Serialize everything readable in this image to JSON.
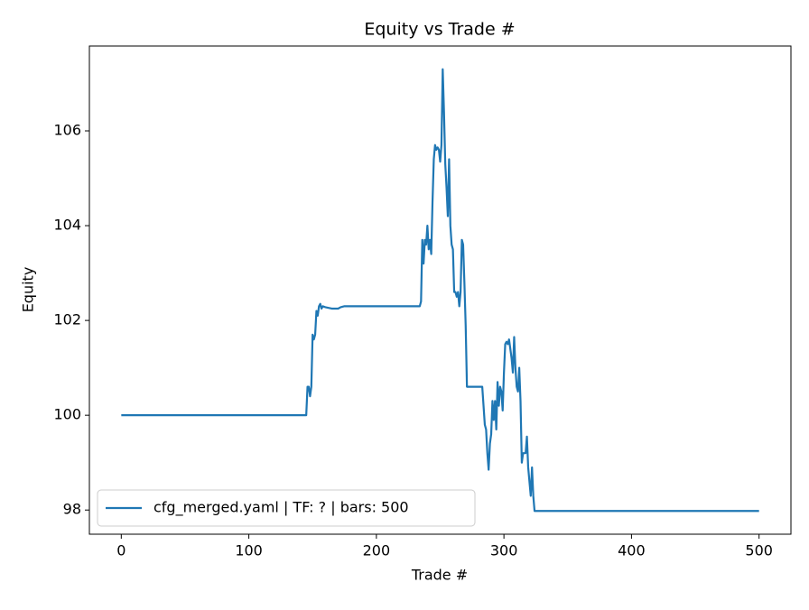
{
  "chart_data": {
    "type": "line",
    "title": "Equity vs Trade #",
    "x_label": "Trade #",
    "y_label": "Equity",
    "x": [
      0,
      145,
      146,
      147,
      148,
      149,
      150,
      151,
      152,
      153,
      154,
      155,
      156,
      157,
      158,
      160,
      165,
      170,
      172,
      175,
      234,
      235,
      236,
      237,
      238,
      239,
      240,
      241,
      242,
      243,
      244,
      245,
      246,
      247,
      248,
      249,
      250,
      251,
      252,
      253,
      254,
      255,
      256,
      257,
      258,
      259,
      260,
      261,
      262,
      263,
      264,
      265,
      266,
      267,
      268,
      269,
      270,
      271,
      272,
      283,
      285,
      286,
      287,
      288,
      289,
      290,
      291,
      292,
      293,
      294,
      295,
      296,
      297,
      298,
      299,
      300,
      301,
      302,
      303,
      304,
      305,
      306,
      307,
      308,
      309,
      310,
      311,
      312,
      313,
      314,
      315,
      316,
      317,
      318,
      319,
      320,
      321,
      322,
      323,
      324,
      500
    ],
    "series": [
      {
        "name": "cfg_merged.yaml | TF: ? | bars: 500",
        "color": "#1f77b4",
        "values": [
          100,
          100,
          100.6,
          100.6,
          100.4,
          100.6,
          101.7,
          101.6,
          101.7,
          102.2,
          102.1,
          102.3,
          102.35,
          102.25,
          102.3,
          102.28,
          102.25,
          102.25,
          102.28,
          102.3,
          102.3,
          102.4,
          103.7,
          103.2,
          103.7,
          103.6,
          104.0,
          103.5,
          103.7,
          103.4,
          104.5,
          105.4,
          105.7,
          105.6,
          105.65,
          105.6,
          105.35,
          105.7,
          107.3,
          106.4,
          105.3,
          104.8,
          104.2,
          105.4,
          104.0,
          103.6,
          103.5,
          102.6,
          102.6,
          102.5,
          102.6,
          102.3,
          102.6,
          103.7,
          103.6,
          102.8,
          101.9,
          100.6,
          100.6,
          100.6,
          99.8,
          99.7,
          99.2,
          98.85,
          99.4,
          99.6,
          100.3,
          99.9,
          100.3,
          99.7,
          100.7,
          100.2,
          100.6,
          100.5,
          100.1,
          100.9,
          101.5,
          101.55,
          101.5,
          101.6,
          101.4,
          101.2,
          100.9,
          101.65,
          101.0,
          100.6,
          100.5,
          101.0,
          100.3,
          99.0,
          99.2,
          99.2,
          99.2,
          99.55,
          98.9,
          98.6,
          98.3,
          98.9,
          98.3,
          97.98,
          97.98
        ]
      }
    ],
    "xlim": [
      -25,
      525
    ],
    "ylim": [
      97.49,
      107.79
    ],
    "xticks": [
      0,
      100,
      200,
      300,
      400,
      500
    ],
    "yticks": [
      98,
      100,
      102,
      104,
      106
    ],
    "legend": "lower left"
  }
}
